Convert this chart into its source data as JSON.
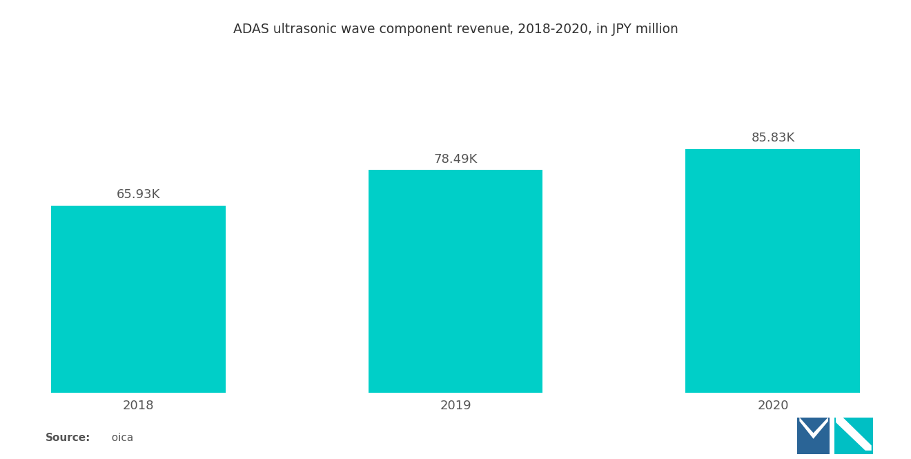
{
  "title": "ADAS ultrasonic wave component revenue, 2018-2020, in JPY million",
  "categories": [
    "2018",
    "2019",
    "2020"
  ],
  "values": [
    65.93,
    78.49,
    85.83
  ],
  "labels": [
    "65.93K",
    "78.49K",
    "85.83K"
  ],
  "bar_color": "#00CFC8",
  "background_color": "#ffffff",
  "title_fontsize": 13.5,
  "label_fontsize": 13,
  "tick_fontsize": 13,
  "source_bold": "Source:",
  "source_normal": "  oica",
  "ylim": [
    0,
    120
  ],
  "bar_width": 0.55
}
